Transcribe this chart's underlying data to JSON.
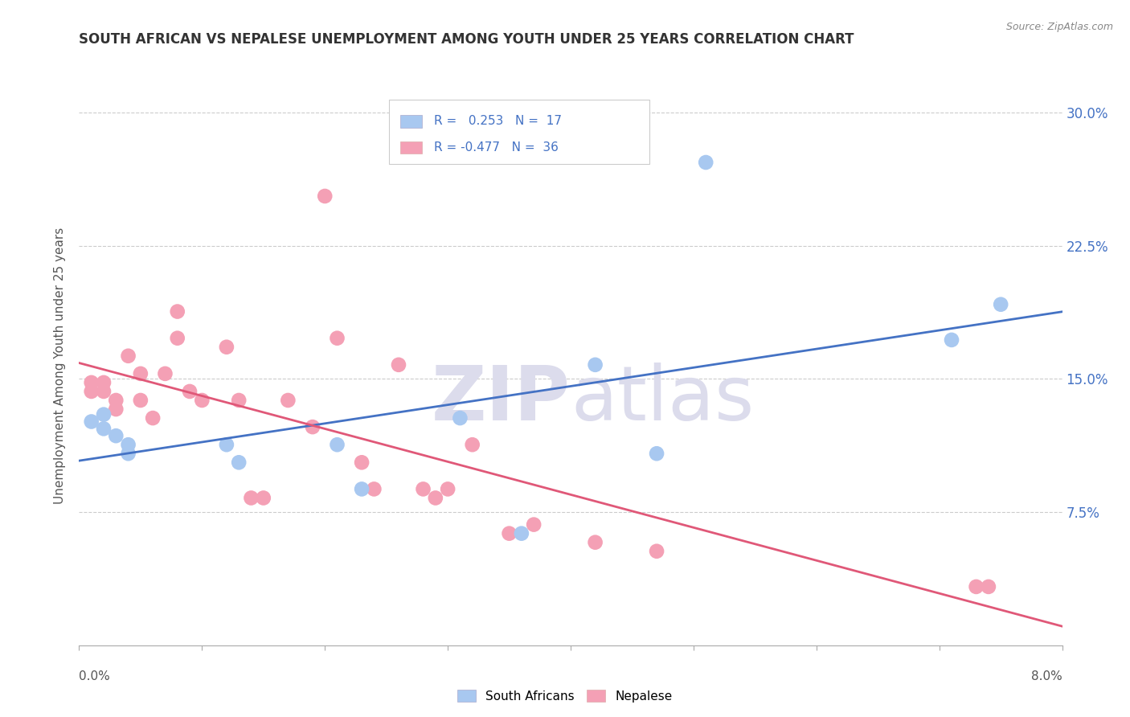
{
  "title": "SOUTH AFRICAN VS NEPALESE UNEMPLOYMENT AMONG YOUTH UNDER 25 YEARS CORRELATION CHART",
  "source": "Source: ZipAtlas.com",
  "ylabel": "Unemployment Among Youth under 25 years",
  "xlim": [
    0.0,
    0.08
  ],
  "ylim": [
    0.0,
    0.315
  ],
  "yticks": [
    0.075,
    0.15,
    0.225,
    0.3
  ],
  "ytick_labels": [
    "7.5%",
    "15.0%",
    "22.5%",
    "30.0%"
  ],
  "legend_r_sa": " 0.253",
  "legend_n_sa": "17",
  "legend_r_np": "-0.477",
  "legend_n_np": "36",
  "legend_label_sa": "South Africans",
  "legend_label_np": "Nepalese",
  "sa_color": "#A8C8F0",
  "np_color": "#F4A0B5",
  "sa_line_color": "#4472C4",
  "np_line_color": "#E05878",
  "background_color": "#FFFFFF",
  "watermark_zip": "ZIP",
  "watermark_atlas": "atlas",
  "sa_x": [
    0.001,
    0.002,
    0.002,
    0.003,
    0.004,
    0.004,
    0.012,
    0.013,
    0.021,
    0.023,
    0.031,
    0.036,
    0.042,
    0.047,
    0.051,
    0.071,
    0.075
  ],
  "sa_y": [
    0.126,
    0.122,
    0.13,
    0.118,
    0.113,
    0.108,
    0.113,
    0.103,
    0.113,
    0.088,
    0.128,
    0.063,
    0.158,
    0.108,
    0.272,
    0.172,
    0.192
  ],
  "np_x": [
    0.001,
    0.001,
    0.002,
    0.002,
    0.003,
    0.003,
    0.004,
    0.005,
    0.005,
    0.006,
    0.007,
    0.008,
    0.008,
    0.009,
    0.01,
    0.012,
    0.013,
    0.014,
    0.015,
    0.017,
    0.019,
    0.02,
    0.021,
    0.023,
    0.024,
    0.026,
    0.028,
    0.029,
    0.03,
    0.032,
    0.035,
    0.037,
    0.042,
    0.047,
    0.073,
    0.074
  ],
  "np_y": [
    0.143,
    0.148,
    0.143,
    0.148,
    0.138,
    0.133,
    0.163,
    0.138,
    0.153,
    0.128,
    0.153,
    0.188,
    0.173,
    0.143,
    0.138,
    0.168,
    0.138,
    0.083,
    0.083,
    0.138,
    0.123,
    0.253,
    0.173,
    0.103,
    0.088,
    0.158,
    0.088,
    0.083,
    0.088,
    0.113,
    0.063,
    0.068,
    0.058,
    0.053,
    0.033,
    0.033
  ]
}
